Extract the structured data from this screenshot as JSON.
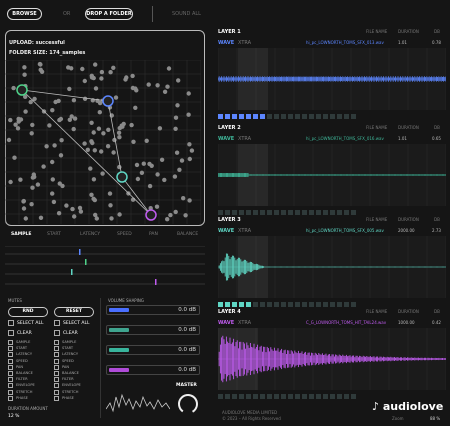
{
  "topbar": {
    "browse": "BROWSE",
    "or": "OR",
    "drop": "DROP A FOLDER",
    "soundall": "SOUND ALL"
  },
  "upload": {
    "status": "UPLOAD: successful",
    "folder": "FOLDER SIZE: 174_samples"
  },
  "tabs": [
    "SAMPLE",
    "START",
    "LATENCY",
    "SPEED",
    "PAN",
    "BALANCE"
  ],
  "lower": {
    "mutes": "MUTES",
    "volume_section": "VOLUME SHAPING",
    "rnd": "RND",
    "reset": "RESET",
    "select_all": "SELECT ALL",
    "clear": "CLEAR",
    "options_left": [
      "SAMPLE",
      "START",
      "LATENCY",
      "SPEED",
      "PAN",
      "BALANCE",
      "FILTER",
      "ENVELOPE",
      "STRETCH",
      "PHASE"
    ],
    "options_right": [
      "SAMPLE",
      "START",
      "LATENCY",
      "SPEED",
      "PAN",
      "BALANCE",
      "FILTER",
      "ENVELOPE",
      "STRETCH",
      "PHASE"
    ],
    "duration_label": "DURATION AMOUNT",
    "duration_value": "12 %",
    "master": "MASTER",
    "volumes": [
      {
        "db": "0.0 dB",
        "color": "#4a6fff"
      },
      {
        "db": "0.0 dB",
        "color": "#3fa58f"
      },
      {
        "db": "0.0 dB",
        "color": "#38b49c"
      },
      {
        "db": "0.0 dB",
        "color": "#b04cd9"
      }
    ]
  },
  "layers": [
    {
      "title": "LAYER 1",
      "wave": "WAVE",
      "xtra": "XTRA",
      "filename": "hi_pc_LOWNORTH_TOMS_SFX_013.wav",
      "headers": [
        "FILE NAME",
        "DURATION",
        "DB"
      ],
      "nums": [
        "1.01",
        "0.78"
      ],
      "color": "#5c86ff",
      "sq_on": 7,
      "sq_off": 13
    },
    {
      "title": "LAYER 2",
      "wave": "WAVE",
      "xtra": "XTRA",
      "filename": "hi_pc_LOWNORTH_TOMS_SFX_016.wav",
      "headers": [
        "FILE NAME",
        "DURATION",
        "DB"
      ],
      "nums": [
        "1.01",
        "0.65"
      ],
      "color": "#3fb89a",
      "sq_on": 0,
      "sq_off": 20
    },
    {
      "title": "LAYER 3",
      "wave": "WAVE",
      "xtra": "XTRA",
      "filename": "hi_pc_LOWNORTH_TOMS_SFX_005.wav",
      "headers": [
        "FILE NAME",
        "DURATION",
        "DB"
      ],
      "nums": [
        "2000.00",
        "2.73"
      ],
      "color": "#5fd6c4",
      "sq_on": 5,
      "sq_off": 15
    },
    {
      "title": "LAYER 4",
      "wave": "WAVE",
      "xtra": "XTRA",
      "filename": "C_G_LOWNORTH_TOMS_HIT_TAIL24.wav",
      "headers": [
        "FILE NAME",
        "DURATION",
        "DB"
      ],
      "nums": [
        "1000.00",
        "0.42"
      ],
      "color": "#c05cf0",
      "sq_on": 0,
      "sq_off": 20
    }
  ],
  "footer": {
    "company": "AUDIOLOVE MEDIA LIMITED",
    "copyright": "© 2023 – All Rights Reserved",
    "zoom_label": "Zoom",
    "zoom": "88 %",
    "logo": "audiolove"
  }
}
